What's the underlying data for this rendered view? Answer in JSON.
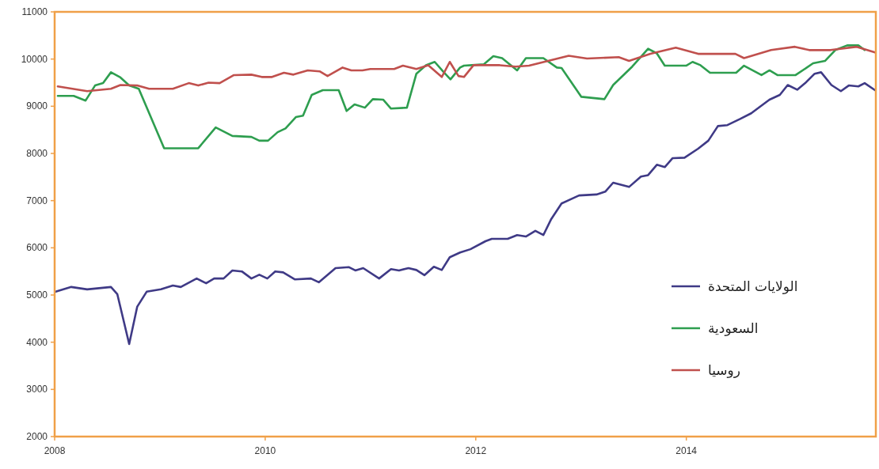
{
  "chart_data": {
    "type": "line",
    "xlim": [
      2008,
      2015.8
    ],
    "xticks": [
      2008,
      2010,
      2012,
      2014
    ],
    "ylim": [
      2000,
      11000
    ],
    "yticks": [
      2000,
      3000,
      4000,
      5000,
      6000,
      7000,
      8000,
      9000,
      10000,
      11000
    ],
    "grid": false,
    "legend": "right",
    "marker": "none",
    "line_style": "solid",
    "series": [
      {
        "name": "الولايات المتحدة",
        "color": "#3f3a86",
        "x": [
          2008.01,
          2008.158,
          2008.309,
          2008.535,
          2008.595,
          2008.708,
          2008.784,
          2008.874,
          2009.01,
          2009.123,
          2009.198,
          2009.349,
          2009.439,
          2009.515,
          2009.605,
          2009.688,
          2009.778,
          2009.869,
          2009.944,
          2010.02,
          2010.095,
          2010.17,
          2010.283,
          2010.434,
          2010.509,
          2010.668,
          2010.796,
          2010.856,
          2010.931,
          2011.082,
          2011.195,
          2011.271,
          2011.361,
          2011.436,
          2011.512,
          2011.602,
          2011.677,
          2011.753,
          2011.851,
          2011.949,
          2012.092,
          2012.152,
          2012.303,
          2012.393,
          2012.476,
          2012.566,
          2012.642,
          2012.717,
          2012.815,
          2012.981,
          2013.147,
          2013.23,
          2013.305,
          2013.456,
          2013.569,
          2013.637,
          2013.72,
          2013.795,
          2013.87,
          2013.983,
          2014.112,
          2014.209,
          2014.3,
          2014.39,
          2014.511,
          2014.616,
          2014.699,
          2014.79,
          2014.888,
          2014.963,
          2015.053,
          2015.129,
          2015.219,
          2015.28,
          2015.378,
          2015.468,
          2015.543,
          2015.634,
          2015.694,
          2015.792
        ],
        "values": [
          5070,
          5170,
          5120,
          5170,
          5020,
          3960,
          4750,
          5070,
          5120,
          5200,
          5170,
          5350,
          5250,
          5350,
          5350,
          5520,
          5500,
          5350,
          5430,
          5350,
          5500,
          5480,
          5330,
          5350,
          5270,
          5570,
          5590,
          5520,
          5570,
          5350,
          5550,
          5520,
          5570,
          5530,
          5420,
          5600,
          5530,
          5800,
          5900,
          5970,
          6140,
          6190,
          6190,
          6270,
          6240,
          6360,
          6270,
          6610,
          6940,
          7110,
          7130,
          7190,
          7380,
          7290,
          7510,
          7540,
          7760,
          7710,
          7900,
          7910,
          8100,
          8270,
          8580,
          8600,
          8730,
          8850,
          8990,
          9140,
          9240,
          9450,
          9350,
          9490,
          9690,
          9720,
          9450,
          9320,
          9440,
          9420,
          9490,
          9340
        ]
      },
      {
        "name": "السعودية",
        "color": "#2e9e4f",
        "x": [
          2008.03,
          2008.181,
          2008.294,
          2008.384,
          2008.46,
          2008.535,
          2008.625,
          2008.708,
          2008.799,
          2009.04,
          2009.364,
          2009.53,
          2009.688,
          2009.869,
          2009.944,
          2010.027,
          2010.118,
          2010.193,
          2010.291,
          2010.359,
          2010.442,
          2010.547,
          2010.698,
          2010.773,
          2010.849,
          2010.947,
          2011.022,
          2011.12,
          2011.195,
          2011.346,
          2011.436,
          2011.527,
          2011.61,
          2011.7,
          2011.76,
          2011.851,
          2011.888,
          2011.964,
          2012.077,
          2012.167,
          2012.25,
          2012.393,
          2012.476,
          2012.642,
          2012.77,
          2012.815,
          2013.003,
          2013.222,
          2013.305,
          2013.486,
          2013.637,
          2013.72,
          2013.795,
          2013.998,
          2014.059,
          2014.134,
          2014.225,
          2014.473,
          2014.548,
          2014.714,
          2014.79,
          2014.865,
          2015.038,
          2015.204,
          2015.317,
          2015.415,
          2015.528,
          2015.634,
          2015.694
        ],
        "values": [
          9220,
          9220,
          9120,
          9440,
          9490,
          9720,
          9610,
          9440,
          9370,
          8110,
          8110,
          8550,
          8370,
          8350,
          8270,
          8270,
          8450,
          8530,
          8770,
          8800,
          9240,
          9340,
          9340,
          8900,
          9040,
          8970,
          9150,
          9140,
          8950,
          8970,
          9690,
          9870,
          9940,
          9710,
          9570,
          9820,
          9860,
          9870,
          9890,
          10060,
          10020,
          9760,
          10020,
          10020,
          9820,
          9810,
          9200,
          9150,
          9450,
          9840,
          10220,
          10120,
          9860,
          9860,
          9940,
          9870,
          9710,
          9710,
          9860,
          9660,
          9760,
          9660,
          9660,
          9910,
          9960,
          10190,
          10290,
          10290,
          10190
        ]
      },
      {
        "name": "روسيا",
        "color": "#c0504d",
        "x": [
          2008.03,
          2008.309,
          2008.535,
          2008.625,
          2008.784,
          2008.897,
          2009.123,
          2009.274,
          2009.364,
          2009.462,
          2009.567,
          2009.703,
          2009.869,
          2009.967,
          2010.065,
          2010.178,
          2010.268,
          2010.404,
          2010.517,
          2010.592,
          2010.735,
          2010.818,
          2010.924,
          2010.999,
          2011.225,
          2011.308,
          2011.436,
          2011.549,
          2011.677,
          2011.753,
          2011.836,
          2011.888,
          2011.979,
          2012.228,
          2012.378,
          2012.506,
          2012.883,
          2013.057,
          2013.358,
          2013.456,
          2013.659,
          2013.9,
          2014.112,
          2014.466,
          2014.548,
          2014.805,
          2015.031,
          2015.167,
          2015.37,
          2015.619,
          2015.792
        ],
        "values": [
          9420,
          9320,
          9370,
          9450,
          9440,
          9370,
          9370,
          9490,
          9440,
          9500,
          9490,
          9660,
          9670,
          9620,
          9620,
          9710,
          9670,
          9760,
          9740,
          9640,
          9820,
          9760,
          9760,
          9790,
          9790,
          9860,
          9790,
          9870,
          9620,
          9940,
          9640,
          9620,
          9870,
          9870,
          9840,
          9860,
          10070,
          10010,
          10040,
          9960,
          10110,
          10240,
          10110,
          10110,
          10020,
          10190,
          10260,
          10190,
          10190,
          10260,
          10140
        ]
      }
    ]
  }
}
